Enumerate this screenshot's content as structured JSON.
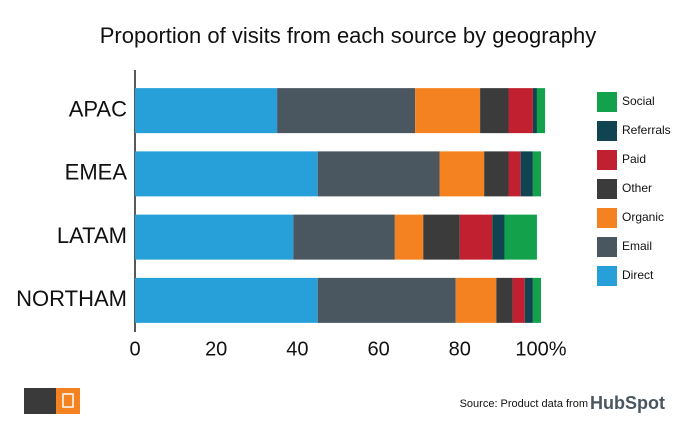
{
  "chart_data": {
    "type": "stacked-bar-horizontal",
    "title": "Proportion of visits from each source by geography",
    "categories": [
      "APAC",
      "EMEA",
      "LATAM",
      "NORTHAM"
    ],
    "series": [
      {
        "name": "Direct",
        "color": "#27a0d9",
        "values": [
          35,
          45,
          39,
          45
        ]
      },
      {
        "name": "Email",
        "color": "#4a5660",
        "values": [
          34,
          30,
          25,
          34
        ]
      },
      {
        "name": "Organic",
        "color": "#f58220",
        "values": [
          16,
          11,
          7,
          10
        ]
      },
      {
        "name": "Other",
        "color": "#3b3b3b",
        "values": [
          7,
          6,
          9,
          4
        ]
      },
      {
        "name": "Paid",
        "color": "#c0202f",
        "values": [
          6,
          3,
          8,
          3
        ]
      },
      {
        "name": "Referrals",
        "color": "#0f4450",
        "values": [
          1,
          3,
          3,
          2
        ]
      },
      {
        "name": "Social",
        "color": "#13a24b",
        "values": [
          2,
          2,
          8,
          2
        ]
      }
    ],
    "xlim": [
      0,
      100
    ],
    "xticks": [
      0,
      20,
      40,
      60,
      80,
      {
        "value": 100,
        "label": "100%"
      }
    ],
    "source": "Source: Product data from",
    "source_brand": "HubSpot"
  }
}
